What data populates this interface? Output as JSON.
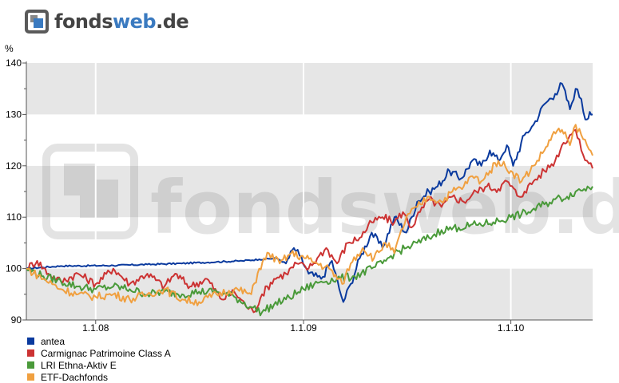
{
  "brand": {
    "text_main": "fonds",
    "text_accent": "web",
    "text_tld": ".de",
    "watermark": "fondsweb.de"
  },
  "chart_data": {
    "type": "line",
    "unit": "%",
    "ylim": [
      90,
      140
    ],
    "yticks": [
      90,
      100,
      110,
      120,
      130,
      140
    ],
    "xlim": [
      "2007-09-01",
      "2010-05-25"
    ],
    "xticks": [
      {
        "label": "1.1.08",
        "date": "2008-01-01"
      },
      {
        "label": "1.1.09",
        "date": "2009-01-01"
      },
      {
        "label": "1.1.10",
        "date": "2010-01-01"
      }
    ],
    "grid": true,
    "legend_position": "bottom-left",
    "series": [
      {
        "name": "antea",
        "color": "#0a3a9e",
        "points": [
          [
            "2007-09-01",
            100
          ],
          [
            "2007-11-01",
            100.5
          ],
          [
            "2008-02-01",
            100.6
          ],
          [
            "2008-04-01",
            100.8
          ],
          [
            "2008-06-01",
            101
          ],
          [
            "2008-08-01",
            101.3
          ],
          [
            "2008-09-15",
            101.5
          ],
          [
            "2008-10-15",
            101.8
          ],
          [
            "2008-11-15",
            102
          ],
          [
            "2008-12-01",
            101
          ],
          [
            "2008-12-15",
            104
          ],
          [
            "2008-12-25",
            102.5
          ],
          [
            "2009-01-10",
            99
          ],
          [
            "2009-02-01",
            98
          ],
          [
            "2009-02-20",
            101.5
          ],
          [
            "2009-03-05",
            96
          ],
          [
            "2009-03-12",
            93.5
          ],
          [
            "2009-03-25",
            97
          ],
          [
            "2009-04-10",
            102
          ],
          [
            "2009-05-01",
            107
          ],
          [
            "2009-05-20",
            104
          ],
          [
            "2009-06-10",
            110
          ],
          [
            "2009-07-01",
            107
          ],
          [
            "2009-07-20",
            113
          ],
          [
            "2009-08-10",
            115
          ],
          [
            "2009-08-25",
            116
          ],
          [
            "2009-09-15",
            119
          ],
          [
            "2009-10-05",
            117.5
          ],
          [
            "2009-10-25",
            121
          ],
          [
            "2009-11-10",
            120
          ],
          [
            "2009-11-25",
            123
          ],
          [
            "2009-12-10",
            121
          ],
          [
            "2009-12-25",
            124
          ],
          [
            "2010-01-05",
            120
          ],
          [
            "2010-01-25",
            126
          ],
          [
            "2010-02-10",
            128
          ],
          [
            "2010-03-01",
            132
          ],
          [
            "2010-03-20",
            134
          ],
          [
            "2010-04-01",
            136
          ],
          [
            "2010-04-15",
            131
          ],
          [
            "2010-04-25",
            135
          ],
          [
            "2010-05-05",
            133
          ],
          [
            "2010-05-12",
            129
          ],
          [
            "2010-05-20",
            130.5
          ],
          [
            "2010-05-25",
            130
          ]
        ]
      },
      {
        "name": "Carmignac Patrimoine Class A",
        "color": "#cc3333",
        "points": [
          [
            "2007-09-01",
            100
          ],
          [
            "2007-09-20",
            101.5
          ],
          [
            "2007-10-10",
            99
          ],
          [
            "2007-11-01",
            97.5
          ],
          [
            "2007-12-01",
            99
          ],
          [
            "2008-01-01",
            97
          ],
          [
            "2008-02-01",
            100
          ],
          [
            "2008-03-01",
            97
          ],
          [
            "2008-04-01",
            99
          ],
          [
            "2008-05-01",
            96.5
          ],
          [
            "2008-05-20",
            99
          ],
          [
            "2008-06-15",
            96.5
          ],
          [
            "2008-07-15",
            98
          ],
          [
            "2008-08-10",
            94
          ],
          [
            "2008-09-01",
            95.5
          ],
          [
            "2008-09-20",
            93
          ],
          [
            "2008-10-05",
            91.5
          ],
          [
            "2008-10-20",
            95
          ],
          [
            "2008-11-10",
            98
          ],
          [
            "2008-12-01",
            99
          ],
          [
            "2008-12-20",
            101
          ],
          [
            "2009-01-10",
            100
          ],
          [
            "2009-01-25",
            102
          ],
          [
            "2009-02-10",
            104
          ],
          [
            "2009-03-01",
            101
          ],
          [
            "2009-03-20",
            105
          ],
          [
            "2009-04-10",
            106
          ],
          [
            "2009-05-01",
            109
          ],
          [
            "2009-05-20",
            110
          ],
          [
            "2009-06-10",
            109
          ],
          [
            "2009-06-25",
            111
          ],
          [
            "2009-07-10",
            108
          ],
          [
            "2009-07-25",
            111
          ],
          [
            "2009-08-10",
            113.5
          ],
          [
            "2009-09-01",
            112
          ],
          [
            "2009-09-20",
            114
          ],
          [
            "2009-10-10",
            113
          ],
          [
            "2009-11-01",
            115
          ],
          [
            "2009-11-20",
            116
          ],
          [
            "2009-12-10",
            115.5
          ],
          [
            "2009-12-25",
            117
          ],
          [
            "2010-01-15",
            114
          ],
          [
            "2010-01-25",
            115
          ],
          [
            "2010-02-10",
            117
          ],
          [
            "2010-03-01",
            119
          ],
          [
            "2010-03-20",
            121
          ],
          [
            "2010-04-01",
            124
          ],
          [
            "2010-04-15",
            126
          ],
          [
            "2010-04-25",
            127
          ],
          [
            "2010-05-05",
            123
          ],
          [
            "2010-05-15",
            121
          ],
          [
            "2010-05-25",
            119.5
          ]
        ]
      },
      {
        "name": "LRI Ethna-Aktiv E",
        "color": "#4a9a3a",
        "points": [
          [
            "2007-09-01",
            100
          ],
          [
            "2007-10-01",
            98.5
          ],
          [
            "2007-11-01",
            97.5
          ],
          [
            "2007-12-01",
            96.5
          ],
          [
            "2008-01-01",
            96
          ],
          [
            "2008-02-01",
            96.5
          ],
          [
            "2008-03-01",
            96
          ],
          [
            "2008-04-01",
            95
          ],
          [
            "2008-05-01",
            95.5
          ],
          [
            "2008-06-01",
            95
          ],
          [
            "2008-07-01",
            95.5
          ],
          [
            "2008-08-01",
            95.5
          ],
          [
            "2008-09-01",
            94.5
          ],
          [
            "2008-10-01",
            92.5
          ],
          [
            "2008-10-20",
            91.5
          ],
          [
            "2008-11-10",
            93
          ],
          [
            "2008-12-01",
            94
          ],
          [
            "2009-01-01",
            96
          ],
          [
            "2009-02-01",
            97.5
          ],
          [
            "2009-03-01",
            98
          ],
          [
            "2009-04-01",
            98.5
          ],
          [
            "2009-05-01",
            100
          ],
          [
            "2009-05-20",
            101
          ],
          [
            "2009-06-10",
            103
          ],
          [
            "2009-07-01",
            104
          ],
          [
            "2009-07-20",
            105
          ],
          [
            "2009-08-10",
            106
          ],
          [
            "2009-09-01",
            107.5
          ],
          [
            "2009-10-01",
            108
          ],
          [
            "2009-11-01",
            108.5
          ],
          [
            "2009-12-01",
            109
          ],
          [
            "2010-01-01",
            110
          ],
          [
            "2010-02-01",
            111
          ],
          [
            "2010-03-01",
            112.5
          ],
          [
            "2010-03-20",
            113.5
          ],
          [
            "2010-04-10",
            114
          ],
          [
            "2010-04-25",
            115
          ],
          [
            "2010-05-10",
            115.5
          ],
          [
            "2010-05-25",
            116
          ]
        ]
      },
      {
        "name": "ETF-Dachfonds",
        "color": "#f0a040",
        "points": [
          [
            "2007-09-01",
            100
          ],
          [
            "2007-10-01",
            98
          ],
          [
            "2007-11-01",
            96
          ],
          [
            "2007-12-01",
            95
          ],
          [
            "2008-01-01",
            94.5
          ],
          [
            "2008-02-01",
            95
          ],
          [
            "2008-03-01",
            94
          ],
          [
            "2008-04-01",
            95
          ],
          [
            "2008-05-01",
            96
          ],
          [
            "2008-06-01",
            94
          ],
          [
            "2008-07-01",
            93.5
          ],
          [
            "2008-08-01",
            95
          ],
          [
            "2008-09-01",
            96
          ],
          [
            "2008-10-01",
            95
          ],
          [
            "2008-10-15",
            100
          ],
          [
            "2008-11-01",
            103
          ],
          [
            "2008-11-20",
            101
          ],
          [
            "2008-12-10",
            103
          ],
          [
            "2009-01-05",
            102
          ],
          [
            "2009-01-25",
            101
          ],
          [
            "2009-02-15",
            100
          ],
          [
            "2009-03-10",
            97
          ],
          [
            "2009-03-25",
            101
          ],
          [
            "2009-04-15",
            104
          ],
          [
            "2009-05-05",
            102
          ],
          [
            "2009-05-25",
            105
          ],
          [
            "2009-06-10",
            103
          ],
          [
            "2009-07-01",
            110
          ],
          [
            "2009-07-20",
            112
          ],
          [
            "2009-08-10",
            114
          ],
          [
            "2009-09-01",
            113
          ],
          [
            "2009-09-20",
            115
          ],
          [
            "2009-10-10",
            116
          ],
          [
            "2009-10-25",
            118
          ],
          [
            "2009-11-10",
            117
          ],
          [
            "2009-11-25",
            119
          ],
          [
            "2009-12-10",
            121
          ],
          [
            "2010-01-01",
            119
          ],
          [
            "2010-01-20",
            117
          ],
          [
            "2010-02-10",
            120
          ],
          [
            "2010-03-01",
            123
          ],
          [
            "2010-03-15",
            126
          ],
          [
            "2010-04-01",
            127
          ],
          [
            "2010-04-15",
            124
          ],
          [
            "2010-04-25",
            128
          ],
          [
            "2010-05-05",
            126
          ],
          [
            "2010-05-15",
            124
          ],
          [
            "2010-05-25",
            122
          ]
        ]
      }
    ]
  }
}
